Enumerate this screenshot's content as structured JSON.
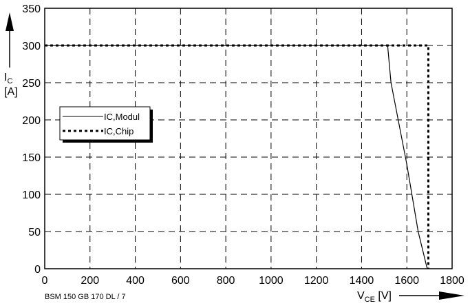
{
  "chart_data": {
    "type": "line",
    "caption": "BSM 150 GB 170 DL / 7",
    "ylabel": {
      "main": "I",
      "sub": "C",
      "unit": "[A]"
    },
    "xlabel": {
      "main": "V",
      "sub": "CE",
      "unit": " [V]"
    },
    "xlim": [
      0,
      1800
    ],
    "ylim": [
      0,
      350
    ],
    "xticks": [
      0,
      200,
      400,
      600,
      800,
      1000,
      1200,
      1400,
      1600,
      1800
    ],
    "yticks": [
      0,
      50,
      100,
      150,
      200,
      250,
      300,
      350
    ],
    "grid": true,
    "legend_position": "left",
    "series": [
      {
        "name": "IC,Modul",
        "style": "solid",
        "x": [
          0,
          1515,
          1530,
          1600,
          1650,
          1690
        ],
        "y": [
          300,
          300,
          250,
          140,
          50,
          0
        ]
      },
      {
        "name": "IC,Chip",
        "style": "dotted",
        "x": [
          0,
          1695,
          1695
        ],
        "y": [
          300,
          300,
          0
        ]
      }
    ]
  }
}
